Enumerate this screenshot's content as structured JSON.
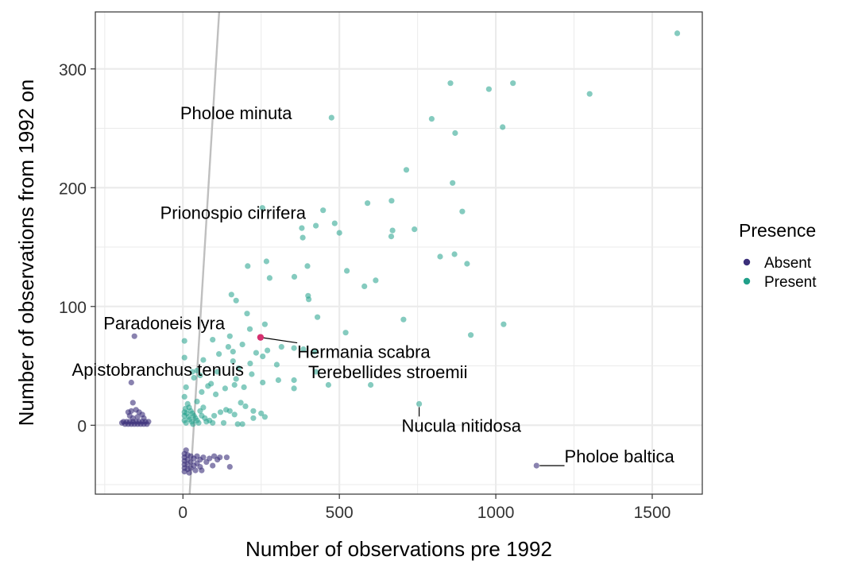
{
  "chart_data": {
    "type": "scatter",
    "title": "",
    "xlabel": "Number of observations pre 1992",
    "ylabel": "Number of observations from 1992 on",
    "xlim": [
      -280,
      1660
    ],
    "ylim": [
      -58,
      348
    ],
    "x_ticks": [
      0,
      500,
      1000,
      1500
    ],
    "y_ticks": [
      0,
      100,
      200,
      300
    ],
    "grid": true,
    "legend": {
      "title": "Presence",
      "position": "right",
      "entries": [
        "Absent",
        "Present"
      ]
    },
    "colors": {
      "Absent": "#3b2f7a",
      "Present": "#21a08a",
      "highlight": "#d6306f",
      "refline": "#bfbfbf",
      "grid": "#ebebeb",
      "panel_border": "#333333"
    },
    "reference_line": {
      "slope": 4.3,
      "intercept": -150
    },
    "series": [
      {
        "name": "Present",
        "points": [
          [
            1580,
            330
          ],
          [
            855,
            288
          ],
          [
            978,
            283
          ],
          [
            1055,
            288
          ],
          [
            1300,
            279
          ],
          [
            475,
            259
          ],
          [
            795,
            258
          ],
          [
            1022,
            251
          ],
          [
            870,
            246
          ],
          [
            714,
            215
          ],
          [
            862,
            204
          ],
          [
            254,
            183
          ],
          [
            448,
            181
          ],
          [
            893,
            180
          ],
          [
            485,
            170
          ],
          [
            590,
            187
          ],
          [
            667,
            189
          ],
          [
            380,
            166
          ],
          [
            425,
            168
          ],
          [
            740,
            165
          ],
          [
            500,
            162
          ],
          [
            383,
            158
          ],
          [
            670,
            164
          ],
          [
            666,
            159
          ],
          [
            822,
            142
          ],
          [
            868,
            144
          ],
          [
            908,
            136
          ],
          [
            267,
            138
          ],
          [
            207,
            134
          ],
          [
            398,
            134
          ],
          [
            524,
            130
          ],
          [
            277,
            124
          ],
          [
            356,
            125
          ],
          [
            616,
            122
          ],
          [
            580,
            117
          ],
          [
            155,
            110
          ],
          [
            170,
            105
          ],
          [
            400,
            109
          ],
          [
            402,
            106
          ],
          [
            205,
            94
          ],
          [
            430,
            91
          ],
          [
            705,
            89
          ],
          [
            1025,
            85
          ],
          [
            262,
            85
          ],
          [
            214,
            81
          ],
          [
            520,
            78
          ],
          [
            920,
            76
          ],
          [
            150,
            75
          ],
          [
            5,
            71
          ],
          [
            95,
            72
          ],
          [
            190,
            68
          ],
          [
            270,
            63
          ],
          [
            234,
            61
          ],
          [
            355,
            65
          ],
          [
            315,
            66
          ],
          [
            145,
            66
          ],
          [
            160,
            62
          ],
          [
            115,
            60
          ],
          [
            385,
            64
          ],
          [
            420,
            62
          ],
          [
            255,
            58
          ],
          [
            5,
            57
          ],
          [
            65,
            55
          ],
          [
            160,
            54
          ],
          [
            215,
            52
          ],
          [
            300,
            51
          ],
          [
            178,
            48
          ],
          [
            30,
            45
          ],
          [
            45,
            46
          ],
          [
            110,
            45
          ],
          [
            55,
            42
          ],
          [
            220,
            43
          ],
          [
            425,
            45
          ],
          [
            35,
            40
          ],
          [
            355,
            38
          ],
          [
            305,
            38
          ],
          [
            170,
            39
          ],
          [
            465,
            34
          ],
          [
            10,
            32
          ],
          [
            80,
            33
          ],
          [
            90,
            35
          ],
          [
            135,
            31
          ],
          [
            165,
            34
          ],
          [
            195,
            32
          ],
          [
            255,
            36
          ],
          [
            355,
            31
          ],
          [
            60,
            28
          ],
          [
            105,
            26
          ],
          [
            5,
            24
          ],
          [
            45,
            20
          ],
          [
            185,
            19
          ],
          [
            200,
            16
          ],
          [
            138,
            13
          ],
          [
            225,
            12
          ],
          [
            250,
            10
          ],
          [
            165,
            9
          ],
          [
            150,
            12
          ],
          [
            120,
            11
          ],
          [
            225,
            6
          ],
          [
            262,
            7
          ],
          [
            85,
            4
          ],
          [
            175,
            1
          ],
          [
            190,
            1
          ],
          [
            755,
            18
          ],
          [
            600,
            34
          ],
          [
            130,
            2
          ],
          [
            15,
            18
          ],
          [
            20,
            15
          ],
          [
            25,
            12
          ],
          [
            30,
            10
          ],
          [
            35,
            8
          ],
          [
            40,
            6
          ],
          [
            45,
            4
          ],
          [
            50,
            2
          ],
          [
            8,
            14
          ],
          [
            12,
            10
          ],
          [
            18,
            7
          ],
          [
            22,
            5
          ],
          [
            28,
            3
          ],
          [
            32,
            1
          ],
          [
            5,
            4
          ],
          [
            5,
            8
          ],
          [
            5,
            11
          ],
          [
            10,
            2
          ],
          [
            60,
            8
          ],
          [
            70,
            6
          ],
          [
            75,
            3
          ],
          [
            95,
            2
          ],
          [
            100,
            8
          ],
          [
            55,
            12
          ],
          [
            65,
            15
          ]
        ]
      },
      {
        "name": "Absent",
        "points": [
          [
            -155,
            75
          ],
          [
            -165,
            36
          ],
          [
            -160,
            19
          ],
          [
            -175,
            11
          ],
          [
            -165,
            12
          ],
          [
            -150,
            13
          ],
          [
            -140,
            11
          ],
          [
            -130,
            9
          ],
          [
            -170,
            8
          ],
          [
            -125,
            6
          ],
          [
            -190,
            3
          ],
          [
            -180,
            3
          ],
          [
            -170,
            3
          ],
          [
            -160,
            3
          ],
          [
            -150,
            3
          ],
          [
            -140,
            3
          ],
          [
            -130,
            3
          ],
          [
            -120,
            3
          ],
          [
            -185,
            1
          ],
          [
            -175,
            1
          ],
          [
            -165,
            1
          ],
          [
            -155,
            1
          ],
          [
            -145,
            1
          ],
          [
            -135,
            1
          ],
          [
            -125,
            1
          ],
          [
            -115,
            1
          ],
          [
            -195,
            2
          ],
          [
            -110,
            3
          ],
          [
            -160,
            6
          ],
          [
            -145,
            7
          ],
          [
            5,
            -24
          ],
          [
            5,
            -27
          ],
          [
            5,
            -30
          ],
          [
            5,
            -33
          ],
          [
            5,
            -36
          ],
          [
            5,
            -39
          ],
          [
            15,
            -25
          ],
          [
            15,
            -29
          ],
          [
            15,
            -33
          ],
          [
            15,
            -37
          ],
          [
            25,
            -26
          ],
          [
            25,
            -31
          ],
          [
            25,
            -36
          ],
          [
            35,
            -28
          ],
          [
            35,
            -34
          ],
          [
            45,
            -26
          ],
          [
            45,
            -32
          ],
          [
            55,
            -29
          ],
          [
            55,
            -35
          ],
          [
            65,
            -27
          ],
          [
            75,
            -31
          ],
          [
            85,
            -28
          ],
          [
            95,
            -34
          ],
          [
            60,
            -38
          ],
          [
            100,
            -26
          ],
          [
            110,
            -29
          ],
          [
            118,
            -27
          ],
          [
            140,
            -27
          ],
          [
            150,
            -35
          ],
          [
            10,
            -21
          ],
          [
            20,
            -40
          ],
          [
            40,
            -38
          ],
          [
            1130,
            -34
          ]
        ]
      }
    ],
    "highlight_point": {
      "label": "Hermania scabra",
      "x": 248,
      "y": 74
    },
    "annotations": [
      {
        "label": "Pholoe minuta",
        "x": 5,
        "y": 253,
        "lx": 170,
        "ly": 263
      },
      {
        "label": "Prionospio cirrifera",
        "x": 30,
        "y": 169,
        "lx": 160,
        "ly": 179
      },
      {
        "label": "Paradoneis lyra",
        "x": -155,
        "y": 75,
        "lx": -60,
        "ly": 86
      },
      {
        "label": "Hermania scabra",
        "x": 248,
        "y": 74,
        "lx": 578,
        "ly": 62
      },
      {
        "label": "Apistobranchus tenuis",
        "x": -165,
        "y": 36,
        "lx": -80,
        "ly": 47
      },
      {
        "label": "Terebellides stroemii",
        "x": 600,
        "y": 34,
        "lx": 655,
        "ly": 45
      },
      {
        "label": "Nucula nitidosa",
        "x": 755,
        "y": 18,
        "lx": 890,
        "ly": 0
      },
      {
        "label": "Pholoe baltica",
        "x": 1130,
        "y": -34,
        "lx": 1395,
        "ly": -26
      }
    ]
  }
}
